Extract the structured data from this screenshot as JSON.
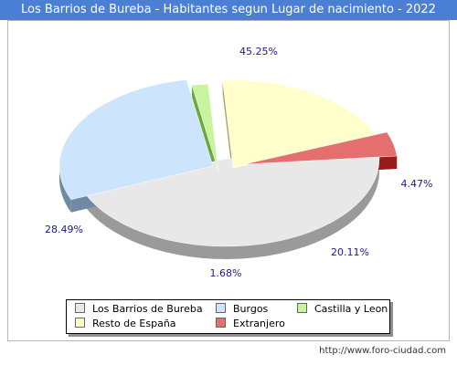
{
  "title": "Los Barrios de Bureba - Habitantes segun Lugar de nacimiento - 2022",
  "source": "http://www.foro-ciudad.com",
  "chart_data": {
    "type": "pie",
    "title": "Los Barrios de Bureba - Habitantes segun Lugar de nacimiento - 2022",
    "slices": [
      {
        "name": "Los Barrios de Bureba",
        "value": 45.25,
        "label": "45.25%",
        "color": "#e8e8e8",
        "side": "#9a9a9a"
      },
      {
        "name": "Burgos",
        "value": 28.49,
        "label": "28.49%",
        "color": "#cce4fc",
        "side": "#6f8aa4"
      },
      {
        "name": "Castilla y Leon",
        "value": 1.68,
        "label": "1.68%",
        "color": "#c8f4a0",
        "side": "#6aa83a"
      },
      {
        "name": "Resto de España",
        "value": 20.11,
        "label": "20.11%",
        "color": "#ffffcc",
        "side": "#a4a46a"
      },
      {
        "name": "Extranjero",
        "value": 4.47,
        "label": "4.47%",
        "color": "#e56e6e",
        "side": "#9a1b1b"
      }
    ],
    "legend": {
      "placement": "bottom",
      "items": [
        {
          "name": "Los Barrios de Bureba",
          "color": "#e8e8e8"
        },
        {
          "name": "Burgos",
          "color": "#cce4fc"
        },
        {
          "name": "Castilla y Leon",
          "color": "#c8f4a0"
        },
        {
          "name": "Resto de España",
          "color": "#ffffcc"
        },
        {
          "name": "Extranjero",
          "color": "#e56e6e"
        }
      ]
    }
  }
}
